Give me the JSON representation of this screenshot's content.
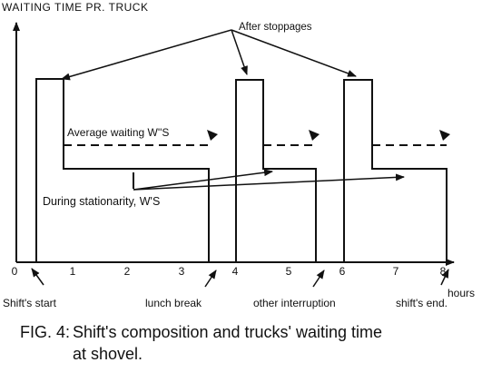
{
  "diagram": {
    "y_axis_label": "WAITING TIME PR. TRUCK",
    "x_unit": "hours",
    "x_ticks": [
      "0",
      "1",
      "2",
      "3",
      "4",
      "5",
      "6",
      "7",
      "8"
    ],
    "annotations": {
      "after_stoppages": "After stoppages",
      "average_waiting": "Average waiting W''S",
      "during_stationarity": "During stationarity, W'S"
    },
    "events": {
      "shift_start": "Shift's start",
      "lunch_break": "lunch break",
      "other_interruption": "other interruption",
      "shift_end": "shift's end."
    }
  },
  "caption": {
    "number": "FIG. 4:",
    "line1": "Shift's composition and trucks' waiting time",
    "line2": "at shovel."
  }
}
